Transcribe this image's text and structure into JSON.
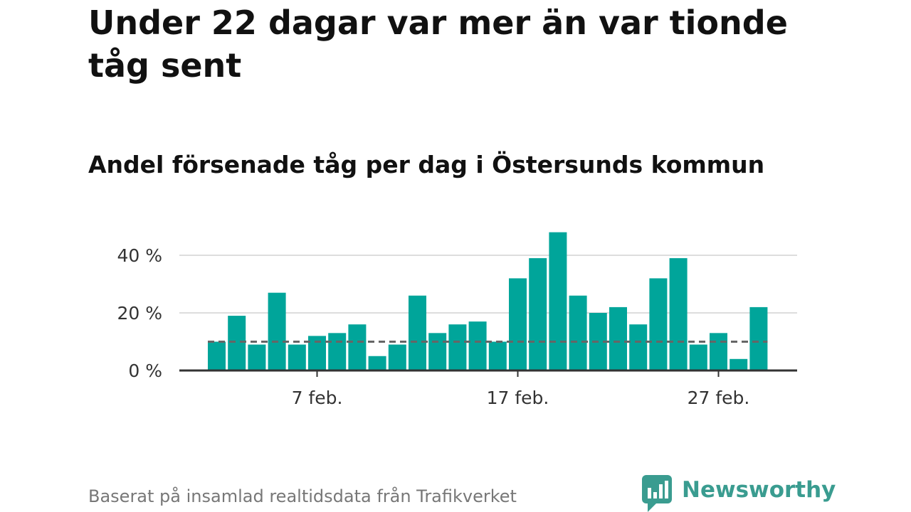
{
  "title": "Under 22 dagar var mer än var tionde tåg sent",
  "subtitle": "Andel försenade tåg per dag i Östersunds kommun",
  "source": "Baserat på insamlad realtidsdata från Trafikverket",
  "brand": "Newsworthy",
  "colors": {
    "bar": "#00a59a",
    "reference": "#666666",
    "grid": "#dddddd",
    "brand": "#3a9c90"
  },
  "chart_data": {
    "type": "bar",
    "x": [
      "2 feb.",
      "3 feb.",
      "4 feb.",
      "5 feb.",
      "6 feb.",
      "7 feb.",
      "8 feb.",
      "9 feb.",
      "10 feb.",
      "11 feb.",
      "12 feb.",
      "13 feb.",
      "14 feb.",
      "15 feb.",
      "16 feb.",
      "17 feb.",
      "18 feb.",
      "19 feb.",
      "20 feb.",
      "21 feb.",
      "22 feb.",
      "23 feb.",
      "24 feb.",
      "25 feb.",
      "26 feb.",
      "27 feb.",
      "28 feb.",
      "29 feb."
    ],
    "values": [
      10,
      19,
      9,
      27,
      9,
      12,
      13,
      16,
      5,
      9,
      26,
      13,
      16,
      17,
      10,
      32,
      39,
      48,
      26,
      20,
      22,
      16,
      32,
      39,
      9,
      13,
      4,
      22
    ],
    "reference_line": 10,
    "ylim": [
      0,
      48
    ],
    "yticks": [
      0,
      20,
      40
    ],
    "ytick_labels": [
      "0 %",
      "20 %",
      "40 %"
    ],
    "xticks": [
      "7 feb.",
      "17 feb.",
      "27 feb."
    ],
    "grid": true
  }
}
